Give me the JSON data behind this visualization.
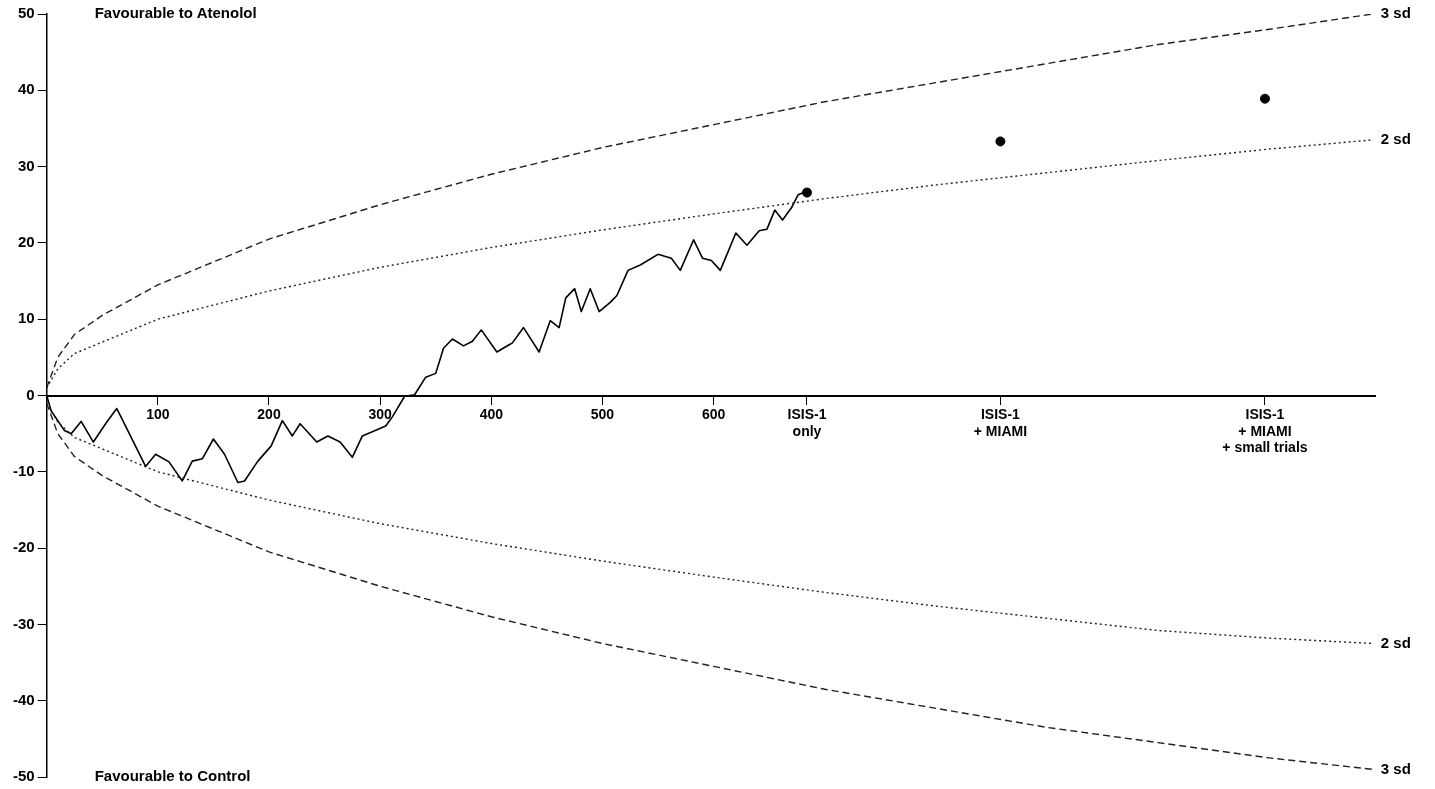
{
  "chart_data": {
    "type": "line",
    "annotations": [
      "Favourable to Atenolol",
      "Favourable to Control"
    ],
    "xlim": [
      0,
      1195
    ],
    "xticks": [
      100,
      200,
      300,
      400,
      500,
      600,
      {
        "value": 684,
        "label": "ISIS-1\nonly"
      },
      {
        "value": 858,
        "label": "ISIS-1\n+ MIAMI"
      },
      {
        "value": 1096,
        "label": "ISIS-1\n+ MIAMI\n+ small trials"
      }
    ],
    "ylim": [
      -50,
      50
    ],
    "yticks": [
      -50,
      -40,
      -30,
      -20,
      -10,
      0,
      10,
      20,
      30,
      40,
      50
    ],
    "series": [
      {
        "name": "3 sd",
        "color": "#222222",
        "line_style": "dashed",
        "marker": "none",
        "x": [
          0,
          10,
          25,
          50,
          100,
          200,
          300,
          400,
          500,
          600,
          700,
          800,
          900,
          1000,
          1100,
          1193
        ],
        "values": [
          1,
          5,
          8,
          10.5,
          14.5,
          20.5,
          25,
          29,
          32.5,
          35.5,
          38.5,
          41,
          43.5,
          46,
          48,
          50
        ]
      },
      {
        "name": "2 sd",
        "color": "#222222",
        "line_style": "dotted",
        "marker": "none",
        "x": [
          0,
          10,
          25,
          50,
          100,
          200,
          300,
          400,
          500,
          600,
          700,
          800,
          900,
          1000,
          1100,
          1193
        ],
        "values": [
          1,
          3.5,
          5.5,
          7,
          10,
          13.7,
          16.8,
          19.4,
          21.7,
          23.8,
          25.8,
          27.6,
          29.2,
          30.8,
          32.3,
          33.5
        ]
      },
      {
        "name": "2 sd",
        "color": "#222222",
        "line_style": "dotted",
        "marker": "none",
        "x": [
          0,
          10,
          25,
          50,
          100,
          200,
          300,
          400,
          500,
          600,
          700,
          800,
          900,
          1000,
          1100,
          1193
        ],
        "values": [
          -1,
          -3.5,
          -5.5,
          -7,
          -10,
          -13.7,
          -16.8,
          -19.4,
          -21.7,
          -23.8,
          -25.8,
          -27.6,
          -29.2,
          -30.8,
          -31.8,
          -32.5
        ]
      },
      {
        "name": "3 sd",
        "color": "#222222",
        "line_style": "dashed",
        "marker": "none",
        "x": [
          0,
          10,
          25,
          50,
          100,
          200,
          300,
          400,
          500,
          600,
          700,
          800,
          900,
          1000,
          1100,
          1193
        ],
        "values": [
          -1,
          -5,
          -8,
          -10.5,
          -14.5,
          -20.5,
          -25,
          -29,
          -32.5,
          -35.5,
          -38.5,
          -41,
          -43.5,
          -45.5,
          -47.5,
          -49
        ]
      },
      {
        "color": "#000000",
        "line_style": "solid",
        "marker": "none",
        "x": [
          0,
          4,
          16,
          22,
          31,
          42,
          53,
          63,
          73,
          89,
          98,
          110,
          122,
          131,
          140,
          150,
          160,
          172,
          178,
          190,
          202,
          212,
          221,
          228,
          243,
          253,
          264,
          275,
          284,
          305,
          311,
          322,
          331,
          341,
          350,
          357,
          365,
          375,
          383,
          391,
          405,
          419,
          429,
          443,
          453,
          461,
          467,
          475,
          481,
          489,
          497,
          507,
          513,
          523,
          534,
          550,
          562,
          570,
          582,
          590,
          598,
          606,
          612,
          620,
          630,
          641,
          648,
          655,
          662,
          670,
          676,
          681
        ],
        "values": [
          0,
          -2,
          -4.6,
          -5,
          -3.4,
          -6.1,
          -3.7,
          -1.7,
          -4.6,
          -9.3,
          -7.7,
          -8.7,
          -11.2,
          -8.6,
          -8.3,
          -5.7,
          -7.7,
          -11.4,
          -11.2,
          -8.6,
          -6.6,
          -3.3,
          -5.3,
          -3.7,
          -6.1,
          -5.3,
          -6.1,
          -8.1,
          -5.3,
          -4,
          -2.8,
          -0.1,
          0.1,
          2.4,
          2.9,
          6.2,
          7.4,
          6.5,
          7.1,
          8.6,
          5.7,
          6.9,
          8.9,
          5.7,
          9.8,
          8.9,
          12.8,
          14,
          11,
          14,
          11,
          12.2,
          13.1,
          16.4,
          17.1,
          18.5,
          18,
          16.4,
          20.4,
          18,
          17.7,
          16.4,
          18.5,
          21.3,
          19.7,
          21.6,
          21.8,
          24.3,
          23,
          24.6,
          26.3,
          26.6
        ]
      },
      {
        "type": "scatter",
        "color": "#000000",
        "marker": "circle",
        "x": [
          684,
          858,
          1096
        ],
        "values": [
          26.6,
          33.3,
          38.9
        ]
      }
    ]
  }
}
